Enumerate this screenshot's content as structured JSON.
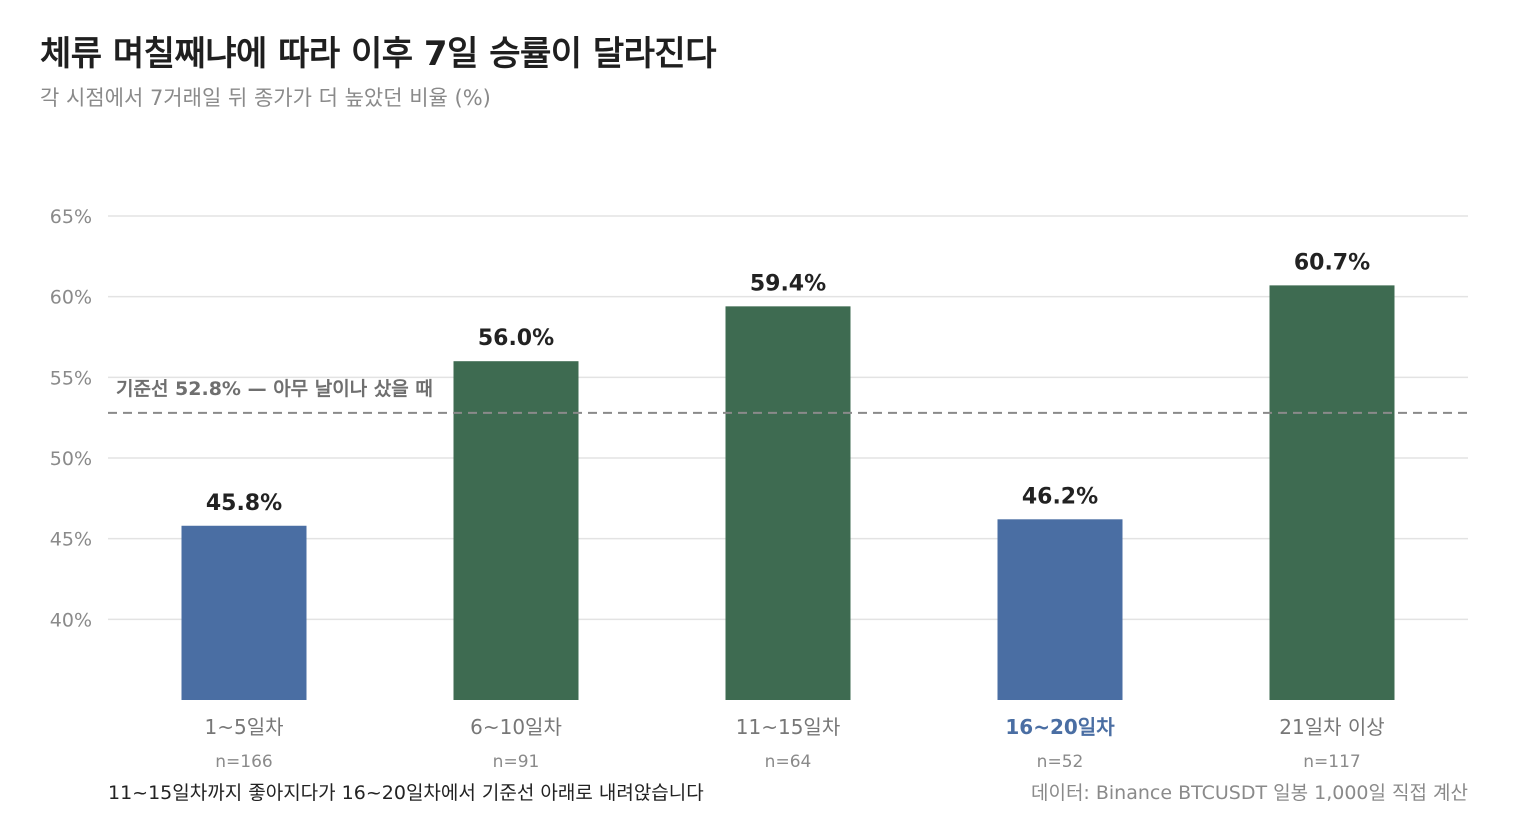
{
  "title": "체류 며칠째냐에 따라 이후 7일 승률이 달라진다",
  "subtitle": "각 시점에서 7거래일 뒤 종가가 더 높았던 비율 (%)",
  "footnote_left": "11~15일차까지 좋아지다가 16~20일차에서 기준선 아래로 내려앉습니다",
  "footnote_right": "데이터: Binance BTCUSDT 일봉 1,000일 직접 계산",
  "colors": {
    "green": "#3e6b51",
    "blue": "#4a6ea3",
    "grid": "#e3e3e3",
    "baseline": "#8a8a8a",
    "tick": "#8a8a8a"
  },
  "chart_data": {
    "type": "bar",
    "categories": [
      "1~5일차",
      "6~10일차",
      "11~15일차",
      "16~20일차",
      "21일차 이상"
    ],
    "sample_sizes": [
      "n=166",
      "n=91",
      "n=64",
      "n=52",
      "n=117"
    ],
    "values": [
      45.8,
      56.0,
      59.4,
      46.2,
      60.7
    ],
    "value_labels": [
      "45.8%",
      "56.0%",
      "59.4%",
      "46.2%",
      "60.7%"
    ],
    "bar_colors": [
      "#4a6ea3",
      "#3e6b51",
      "#3e6b51",
      "#4a6ea3",
      "#3e6b51"
    ],
    "highlight_category": "16~20일차",
    "yticks": [
      40,
      45,
      50,
      55,
      60,
      65
    ],
    "ytick_labels": [
      "40%",
      "45%",
      "50%",
      "55%",
      "60%",
      "65%"
    ],
    "ylim": [
      35,
      65
    ],
    "baseline": {
      "value": 52.8,
      "label": "기준선 52.8% — 아무 날이나 샀을 때"
    },
    "grid": true
  }
}
